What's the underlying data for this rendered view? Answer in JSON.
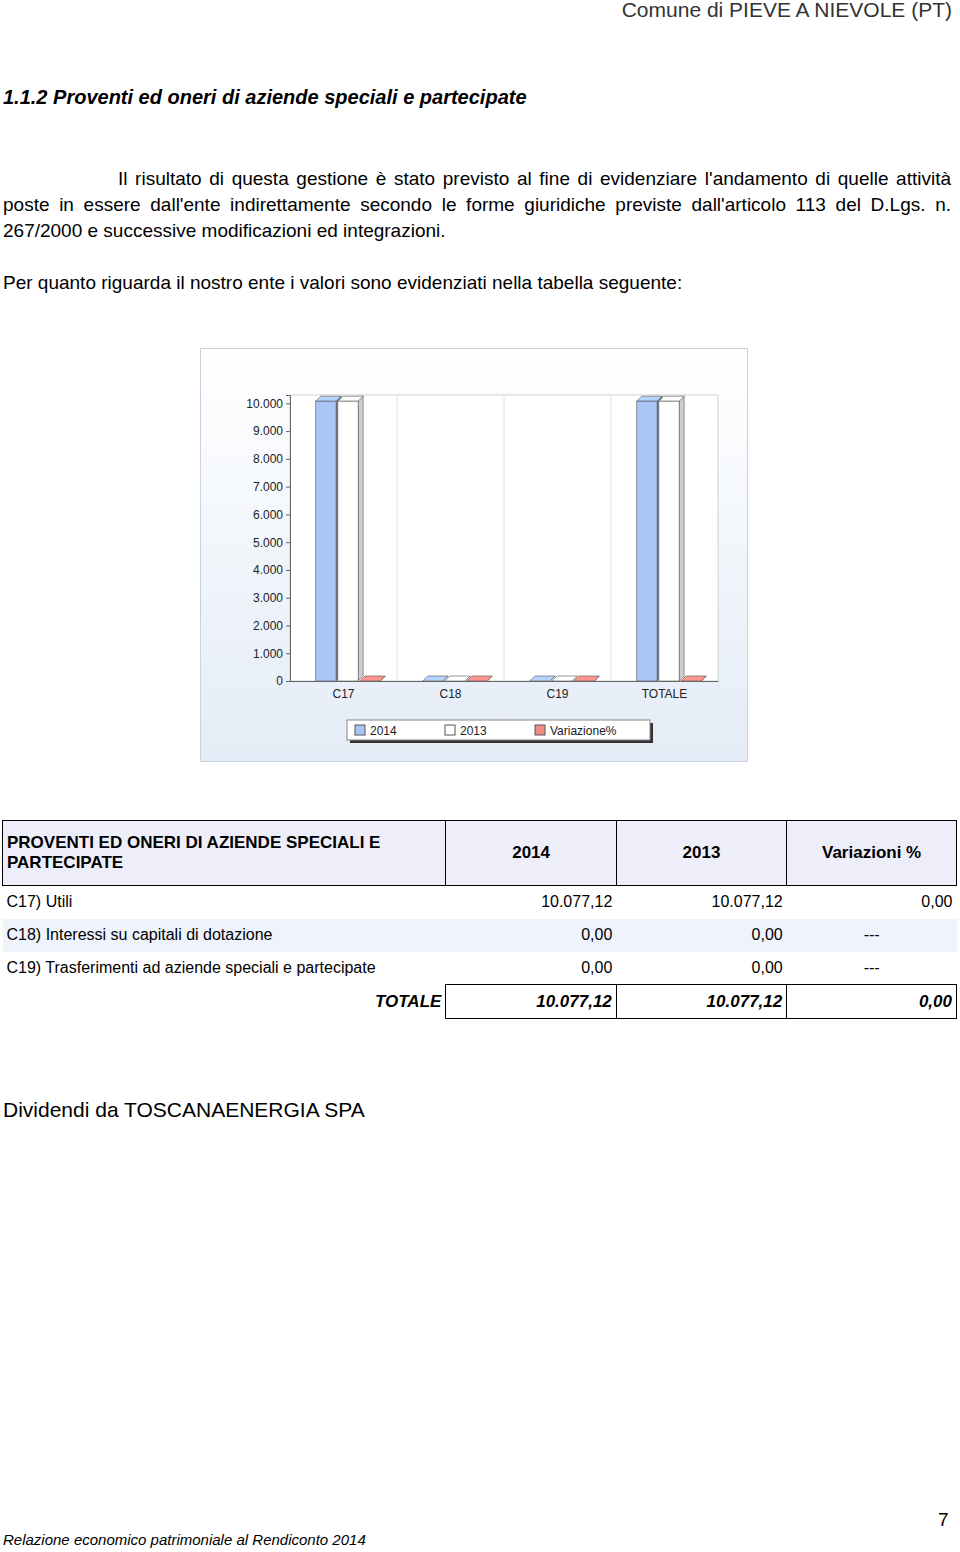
{
  "header": {
    "org": "Comune di PIEVE A NIEVOLE (PT)"
  },
  "section": {
    "title": "1.1.2 Proventi ed oneri di aziende speciali e partecipate"
  },
  "paragraphs": [
    "Il risultato di questa gestione è stato previsto al fine di evidenziare l'andamento di quelle attività poste in essere dall'ente indirettamente secondo le forme giuridiche previste dall'articolo 113 del D.Lgs. n. 267/2000 e successive modificazioni ed integrazioni.",
    "Per quanto riguarda il nostro ente i valori sono evidenziati nella tabella seguente:"
  ],
  "chart_data": {
    "type": "bar",
    "categories": [
      "C17",
      "C18",
      "C19",
      "TOTALE"
    ],
    "series": [
      {
        "name": "2014",
        "color": "#a9c6f7",
        "values": [
          10077.12,
          0,
          0,
          10077.12
        ]
      },
      {
        "name": "2013",
        "color": "#ffffff",
        "values": [
          10077.12,
          0,
          0,
          10077.12
        ]
      },
      {
        "name": "Variazione%",
        "color": "#f28b82",
        "values": [
          0,
          0,
          0,
          0
        ]
      }
    ],
    "ylim": [
      0,
      10300
    ],
    "yticks": [
      {
        "value": 0,
        "label": "0"
      },
      {
        "value": 1000,
        "label": "1.000"
      },
      {
        "value": 2000,
        "label": "2.000"
      },
      {
        "value": 3000,
        "label": "3.000"
      },
      {
        "value": 4000,
        "label": "4.000"
      },
      {
        "value": 5000,
        "label": "5.000"
      },
      {
        "value": 6000,
        "label": "6.000"
      },
      {
        "value": 7000,
        "label": "7.000"
      },
      {
        "value": 8000,
        "label": "8.000"
      },
      {
        "value": 9000,
        "label": "9.000"
      },
      {
        "value": 10000,
        "label": "10.000"
      }
    ],
    "legend": "bottom"
  },
  "table": {
    "header": [
      "PROVENTI ED ONERI DI AZIENDE SPECIALI E PARTECIPATE",
      "2014",
      "2013",
      "Variazioni %"
    ],
    "rows": [
      [
        "C17) Utili",
        "10.077,12",
        "10.077,12",
        "0,00"
      ],
      [
        "C18) Interessi su capitali di dotazione",
        "0,00",
        "0,00",
        "---"
      ],
      [
        "C19) Trasferimenti ad aziende speciali e partecipate",
        "0,00",
        "0,00",
        "---"
      ]
    ],
    "total": [
      "TOTALE",
      "10.077,12",
      "10.077,12",
      "0,00"
    ]
  },
  "note": "Dividendi da TOSCANAENERGIA SPA",
  "footer": {
    "text": "Relazione economico patrimoniale al Rendiconto 2014",
    "page": "7"
  }
}
